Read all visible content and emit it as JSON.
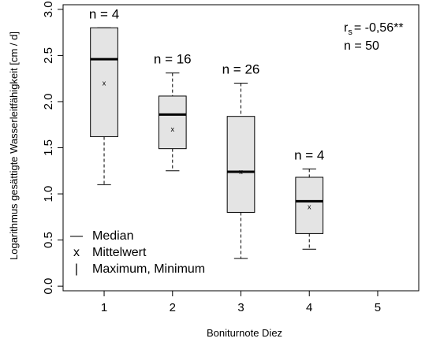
{
  "chart_data": {
    "type": "box",
    "xlabel": "Boniturnote Diez",
    "ylabel": "Logarithmus gesättigte Wasserleitfähigkeit [cm / d]",
    "categories": [
      "1",
      "2",
      "3",
      "4",
      "5"
    ],
    "yticks": [
      "0.0",
      "0.5",
      "1.0",
      "1.5",
      "2.0",
      "2.5",
      "3.0"
    ],
    "ylim": [
      -0.05,
      3.05
    ],
    "xlim": [
      0.4,
      5.6
    ],
    "boxes": [
      {
        "x": 1,
        "min": 1.1,
        "q1": 1.62,
        "median": 2.46,
        "q3": 2.8,
        "max": 2.8,
        "mean": 2.2,
        "n_label": "n = 4"
      },
      {
        "x": 2,
        "min": 1.25,
        "q1": 1.49,
        "median": 1.86,
        "q3": 2.06,
        "max": 2.31,
        "mean": 1.7,
        "n_label": "n = 16"
      },
      {
        "x": 3,
        "min": 0.3,
        "q1": 0.8,
        "median": 1.24,
        "q3": 1.84,
        "max": 2.2,
        "mean": 1.24,
        "n_label": "n = 26"
      },
      {
        "x": 4,
        "min": 0.4,
        "q1": 0.57,
        "median": 0.92,
        "q3": 1.18,
        "max": 1.27,
        "mean": 0.86,
        "n_label": "n = 4"
      }
    ],
    "stats": {
      "rs_symbol": "r",
      "rs_subscript": "s",
      "rs_value": "= -0,56**",
      "n_total": "n = 50"
    },
    "legend": {
      "position": "bottom-left",
      "items": [
        {
          "symbol": "—",
          "label": "Median"
        },
        {
          "symbol": "x",
          "label": "Mittelwert"
        },
        {
          "symbol": "|",
          "label": "Maximum, Minimum"
        }
      ]
    },
    "grid": false
  },
  "colors": {
    "box_fill": "#e4e4e4",
    "stroke": "#000000",
    "background": "#ffffff"
  }
}
